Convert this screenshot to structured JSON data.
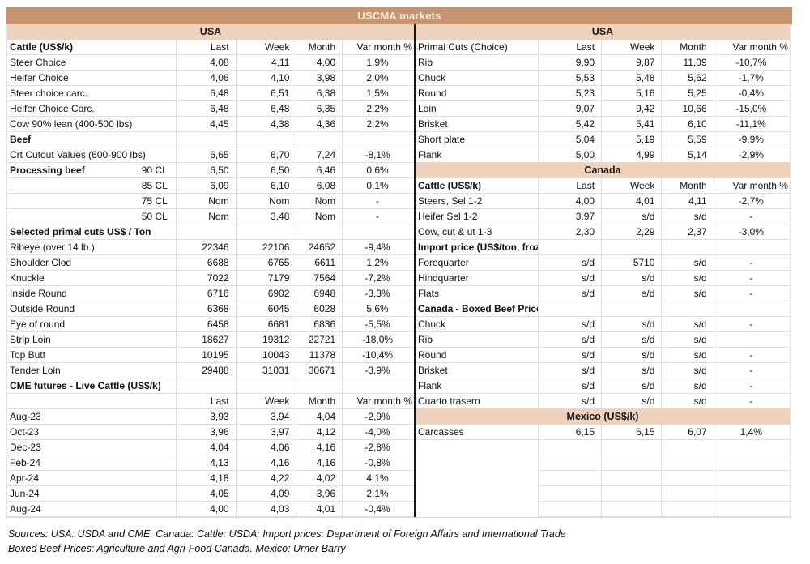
{
  "title": "USCMA markets",
  "columns": [
    "Last",
    "Week",
    "Month",
    "Var month %"
  ],
  "colors": {
    "title_bg": "#c6946e",
    "title_text": "#f7ecdf",
    "region_band_bg": "#eed2bc",
    "grid_border": "#dedede",
    "half_divider": "#161616"
  },
  "left": {
    "rows": [
      {
        "t": "band",
        "label": "USA"
      },
      {
        "t": "header",
        "label": "Cattle (US$/k)",
        "bold": true
      },
      {
        "t": "d",
        "label": "Steer Choice",
        "v": [
          "4,08",
          "4,11",
          "4,00",
          "1,9%"
        ]
      },
      {
        "t": "d",
        "label": "Heifer Choice",
        "v": [
          "4,06",
          "4,10",
          "3,98",
          "2,0%"
        ]
      },
      {
        "t": "d",
        "label": "Steer choice carc.",
        "v": [
          "6,48",
          "6,51",
          "6,38",
          "1,5%"
        ]
      },
      {
        "t": "d",
        "label": "Heifer Choice Carc.",
        "v": [
          "6,48",
          "6,48",
          "6,35",
          "2,2%"
        ]
      },
      {
        "t": "d",
        "label": "Cow 90% lean (400-500 lbs)",
        "v": [
          "4,45",
          "4,38",
          "4,36",
          "2,2%"
        ]
      },
      {
        "t": "sec",
        "label": "Beef"
      },
      {
        "t": "d",
        "label": "Crt Cutout Values (600-900 lbs)",
        "v": [
          "6,65",
          "6,70",
          "7,24",
          "-8,1%"
        ]
      },
      {
        "t": "d",
        "label": "Processing beef",
        "sub": "90 CL",
        "bold": true,
        "v": [
          "6,50",
          "6,50",
          "6,46",
          "0,6%"
        ]
      },
      {
        "t": "d",
        "label": "85 CL",
        "labelRight": true,
        "v": [
          "6,09",
          "6,10",
          "6,08",
          "0,1%"
        ]
      },
      {
        "t": "d",
        "label": "75 CL",
        "labelRight": true,
        "v": [
          "Nom",
          "Nom",
          "Nom",
          "-"
        ]
      },
      {
        "t": "d",
        "label": "50 CL",
        "labelRight": true,
        "v": [
          "Nom",
          "3,48",
          "Nom",
          "-"
        ]
      },
      {
        "t": "sec",
        "label": "Selected primal cuts US$ / Ton"
      },
      {
        "t": "d",
        "label": "Ribeye (over 14 lb.)",
        "v": [
          "22346",
          "22106",
          "24652",
          "-9,4%"
        ]
      },
      {
        "t": "d",
        "label": "Shoulder Clod",
        "v": [
          "6688",
          "6765",
          "6611",
          "1,2%"
        ]
      },
      {
        "t": "d",
        "label": "Knuckle",
        "v": [
          "7022",
          "7179",
          "7564",
          "-7,2%"
        ]
      },
      {
        "t": "d",
        "label": "Inside Round",
        "v": [
          "6716",
          "6902",
          "6948",
          "-3,3%"
        ]
      },
      {
        "t": "d",
        "label": "Outside Round",
        "v": [
          "6368",
          "6045",
          "6028",
          "5,6%"
        ]
      },
      {
        "t": "d",
        "label": "Eye of round",
        "v": [
          "6458",
          "6681",
          "6836",
          "-5,5%"
        ]
      },
      {
        "t": "d",
        "label": "Strip Loin",
        "v": [
          "18627",
          "19312",
          "22721",
          "-18,0%"
        ]
      },
      {
        "t": "d",
        "label": "Top Butt",
        "v": [
          "10195",
          "10043",
          "11378",
          "-10,4%"
        ]
      },
      {
        "t": "d",
        "label": "Tender Loin",
        "v": [
          "29488",
          "31031",
          "30671",
          "-3,9%"
        ]
      },
      {
        "t": "sec",
        "label": "CME futures - Live Cattle (US$/k)"
      },
      {
        "t": "header",
        "label": ""
      },
      {
        "t": "d",
        "label": "Aug-23",
        "v": [
          "3,93",
          "3,94",
          "4,04",
          "-2,9%"
        ]
      },
      {
        "t": "d",
        "label": "Oct-23",
        "v": [
          "3,96",
          "3,97",
          "4,12",
          "-4,0%"
        ]
      },
      {
        "t": "d",
        "label": "Dec-23",
        "v": [
          "4,04",
          "4,06",
          "4,16",
          "-2,8%"
        ]
      },
      {
        "t": "d",
        "label": "Feb-24",
        "v": [
          "4,13",
          "4,16",
          "4,16",
          "-0,8%"
        ]
      },
      {
        "t": "d",
        "label": "Apr-24",
        "v": [
          "4,18",
          "4,22",
          "4,02",
          "4,1%"
        ]
      },
      {
        "t": "d",
        "label": "Jun-24",
        "v": [
          "4,05",
          "4,09",
          "3,96",
          "2,1%"
        ]
      },
      {
        "t": "d",
        "label": "Aug-24",
        "v": [
          "4,00",
          "4,03",
          "4,01",
          "-0,4%"
        ]
      }
    ]
  },
  "right": {
    "rows": [
      {
        "t": "band",
        "label": "USA"
      },
      {
        "t": "header",
        "label": "Primal Cuts (Choice)"
      },
      {
        "t": "d",
        "label": "Rib",
        "v": [
          "9,90",
          "9,87",
          "11,09",
          "-10,7%"
        ]
      },
      {
        "t": "d",
        "label": "Chuck",
        "v": [
          "5,53",
          "5,48",
          "5,62",
          "-1,7%"
        ]
      },
      {
        "t": "d",
        "label": "Round",
        "v": [
          "5,23",
          "5,16",
          "5,25",
          "-0,4%"
        ]
      },
      {
        "t": "d",
        "label": "Loin",
        "v": [
          "9,07",
          "9,42",
          "10,66",
          "-15,0%"
        ]
      },
      {
        "t": "d",
        "label": "Brisket",
        "v": [
          "5,42",
          "5,41",
          "6,10",
          "-11,1%"
        ]
      },
      {
        "t": "d",
        "label": "Short plate",
        "v": [
          "5,04",
          "5,19",
          "5,59",
          "-9,9%"
        ]
      },
      {
        "t": "d",
        "label": "Flank",
        "v": [
          "5,00",
          "4,99",
          "5,14",
          "-2,9%"
        ]
      },
      {
        "t": "band",
        "label": "Canada"
      },
      {
        "t": "header",
        "label": "Cattle (US$/k)",
        "bold": true
      },
      {
        "t": "d",
        "label": "Steers, Sel 1-2",
        "v": [
          "4,00",
          "4,01",
          "4,11",
          "-2,7%"
        ]
      },
      {
        "t": "d",
        "label": "Heifer Sel 1-2",
        "v": [
          "3,97",
          "s/d",
          "s/d",
          "-"
        ]
      },
      {
        "t": "d",
        "label": "Cow, cut & ut 1-3",
        "v": [
          "2,30",
          "2,29",
          "2,37",
          "-3,0%"
        ]
      },
      {
        "t": "sec",
        "label": "Import price (US$/ton, frozen, boneless )"
      },
      {
        "t": "d",
        "label": "Forequarter",
        "v": [
          "s/d",
          "5710",
          "s/d",
          "-"
        ]
      },
      {
        "t": "d",
        "label": "Hindquarter",
        "v": [
          "s/d",
          "s/d",
          "s/d",
          "-"
        ]
      },
      {
        "t": "d",
        "label": "Flats",
        "v": [
          "s/d",
          "s/d",
          "s/d",
          "-"
        ]
      },
      {
        "t": "sec",
        "label": "Canada - Boxed Beef Prices (US$/k)"
      },
      {
        "t": "d",
        "label": "Chuck",
        "v": [
          "s/d",
          "s/d",
          "s/d",
          "-"
        ]
      },
      {
        "t": "d",
        "label": "Rib",
        "v": [
          "s/d",
          "s/d",
          "s/d",
          ""
        ]
      },
      {
        "t": "d",
        "label": "Round",
        "v": [
          "s/d",
          "s/d",
          "s/d",
          "-"
        ]
      },
      {
        "t": "d",
        "label": "Brisket",
        "v": [
          "s/d",
          "s/d",
          "s/d",
          "-"
        ]
      },
      {
        "t": "d",
        "label": "Flank",
        "v": [
          "s/d",
          "s/d",
          "s/d",
          "-"
        ]
      },
      {
        "t": "d",
        "label": "Cuarto trasero",
        "v": [
          "s/d",
          "s/d",
          "s/d",
          "-"
        ]
      },
      {
        "t": "band",
        "label": "Mexico (US$/k)"
      },
      {
        "t": "d",
        "label": "Carcasses",
        "v": [
          "6,15",
          "6,15",
          "6,07",
          "1,4%"
        ]
      },
      {
        "t": "empty"
      },
      {
        "t": "empty"
      },
      {
        "t": "empty"
      },
      {
        "t": "empty"
      },
      {
        "t": "empty"
      }
    ]
  },
  "footer": {
    "line1": "Sources: USA: USDA and CME. Canada: Cattle: USDA; Import prices: Department of Foreign Affairs and International Trade",
    "line2": "Boxed Beef Prices: Agriculture and Agri-Food Canada. Mexico: Urner Barry"
  }
}
